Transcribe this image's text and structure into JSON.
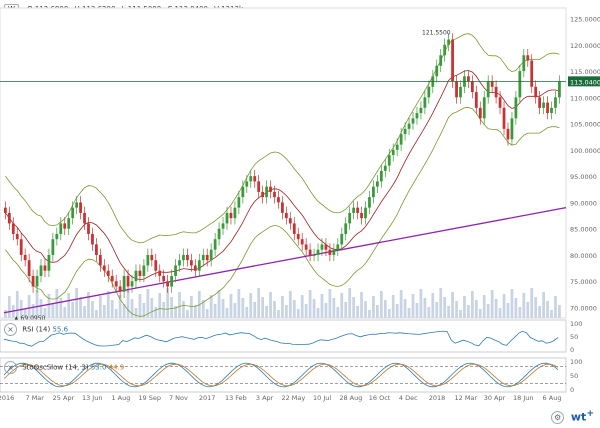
{
  "toolbar": {
    "timeframe": "W",
    "open": "O 112.6800",
    "high": "H 113.6200",
    "low": "L 111.5000",
    "close": "C 113.0400",
    "volume": "V 1213k"
  },
  "price_axis": [
    "125.0000",
    "120.0000",
    "115.0000",
    "110.0000",
    "105.0000",
    "100.0000",
    "95.0000",
    "90.0000",
    "85.0000",
    "80.0000",
    "75.0000",
    "70.0000"
  ],
  "current_price_label": "113.0400",
  "high_annotation": "121.5500",
  "low_annotation": "69.0950",
  "rsi": {
    "label": "RSI (14)",
    "value": "55.6",
    "axis": [
      "100",
      "50",
      "0"
    ]
  },
  "stoch": {
    "label": "StoOscSlow (14, 3)",
    "k": "53.0",
    "d": "44.9",
    "axis": [
      "100",
      "50",
      "0"
    ]
  },
  "time_axis": [
    "2016",
    "7 Mar",
    "25 Apr",
    "13 Jun",
    "1 Aug",
    "19 Sep",
    "7 Nov",
    "2017",
    "13 Feb",
    "3 Apr",
    "22 May",
    "10 Jul",
    "28 Aug",
    "16 Oct",
    "4 Dec",
    "2018",
    "12 Mar",
    "30 Apr",
    "18 Jun",
    "6 Aug"
  ],
  "brand": "wt",
  "colors": {
    "up": "#3a9a3a",
    "down": "#c83232",
    "band": "#7a9a2a",
    "ma": "#a02020",
    "trend": "#9020b0",
    "price_line": "#1a6a3a",
    "volume": "#c8d4e4"
  },
  "chart_data": {
    "type": "candlestick",
    "title": "",
    "ylim": [
      68,
      127
    ],
    "closes": [
      88,
      86,
      84,
      83,
      80,
      79,
      76,
      74,
      76,
      78,
      77,
      80,
      83,
      84,
      86,
      85,
      87,
      89,
      90,
      88,
      86,
      84,
      82,
      80,
      78,
      77,
      76,
      75,
      74,
      73,
      76,
      74,
      75,
      77,
      76,
      78,
      80,
      79,
      77,
      76,
      75,
      74,
      76,
      78,
      79,
      80,
      79,
      78,
      77,
      79,
      80,
      79,
      81,
      83,
      85,
      86,
      88,
      87,
      89,
      91,
      93,
      94,
      95,
      94,
      92,
      91,
      93,
      92,
      91,
      90,
      88,
      87,
      86,
      84,
      83,
      82,
      81,
      80,
      80,
      81,
      82,
      81,
      80,
      81,
      82,
      84,
      86,
      88,
      89,
      88,
      87,
      89,
      91,
      93,
      94,
      96,
      97,
      99,
      100,
      101,
      103,
      104,
      105,
      106,
      107,
      108,
      110,
      112,
      114,
      116,
      118,
      120,
      121,
      113,
      110,
      112,
      114,
      113,
      111,
      108,
      106,
      110,
      113,
      112,
      110,
      108,
      104,
      102,
      106,
      110,
      115,
      118,
      117,
      112,
      110,
      108,
      109,
      107,
      108,
      110,
      113
    ],
    "trendline": {
      "from": 69,
      "to": 89
    }
  }
}
